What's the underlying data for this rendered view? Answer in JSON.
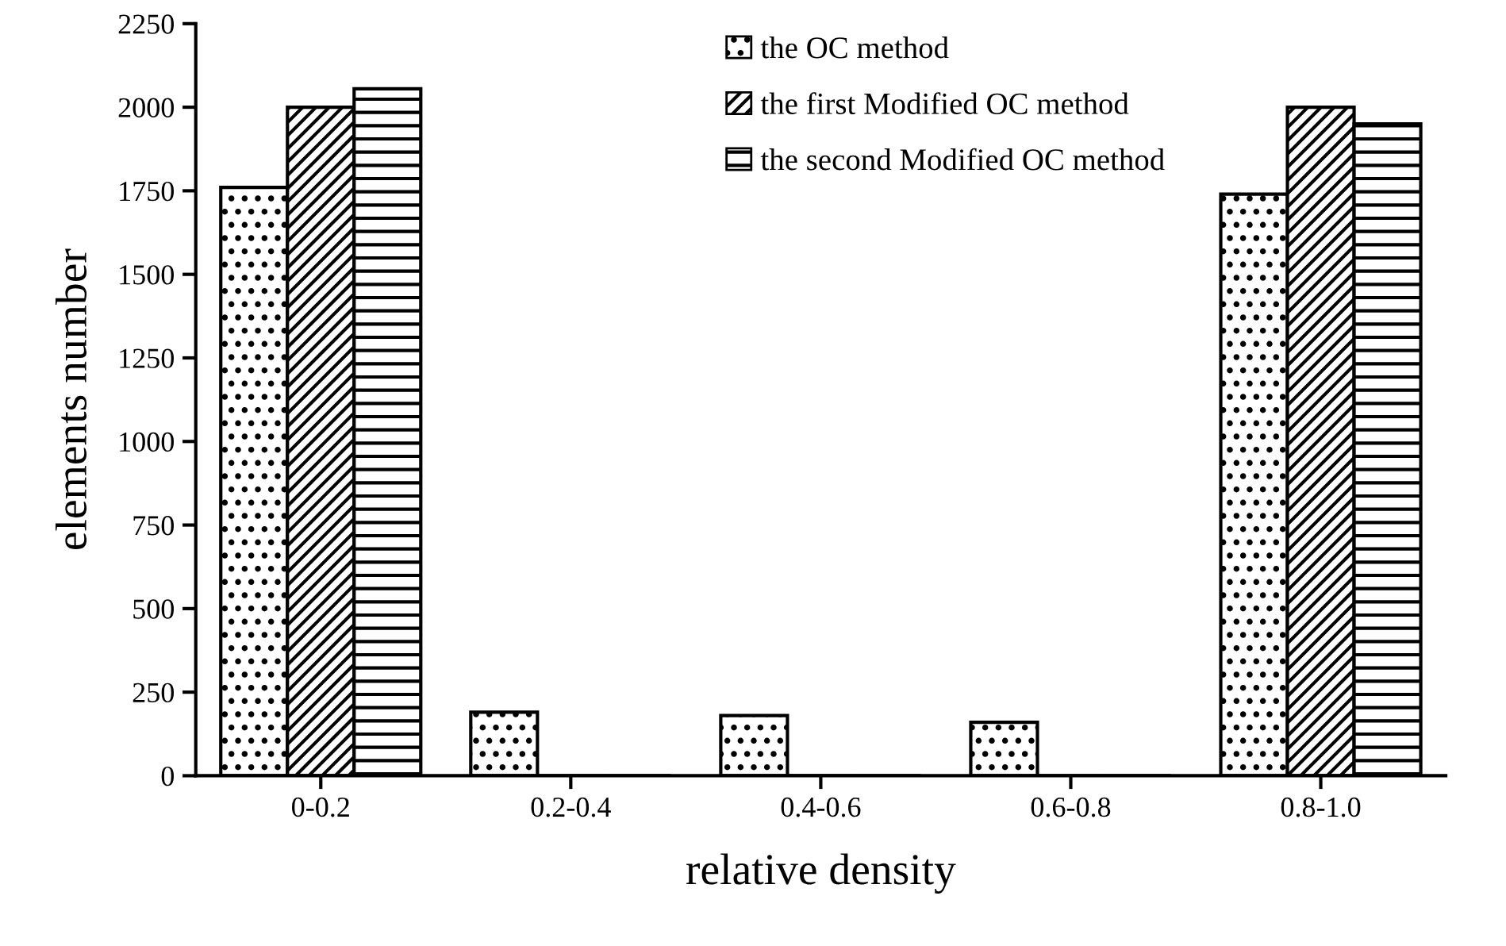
{
  "chart_data": {
    "type": "bar",
    "xlabel": "relative density",
    "ylabel": "elements number",
    "categories": [
      "0-0.2",
      "0.2-0.4",
      "0.4-0.6",
      "0.6-0.8",
      "0.8-1.0"
    ],
    "series": [
      {
        "name": "the OC method",
        "color": "#000000",
        "values": [
          1760,
          190,
          180,
          160,
          1740
        ]
      },
      {
        "name": "the first Modified OC method",
        "color": "#000000",
        "values": [
          2000,
          0,
          0,
          0,
          2000
        ]
      },
      {
        "name": "the second Modified OC method",
        "color": "#000000",
        "values": [
          2055,
          0,
          0,
          0,
          1950
        ]
      }
    ],
    "ylim": [
      0,
      2250
    ],
    "yticks": [
      0,
      250,
      500,
      750,
      1000,
      1250,
      1500,
      1750,
      2000,
      2250
    ],
    "grid": false,
    "legend": "top"
  }
}
